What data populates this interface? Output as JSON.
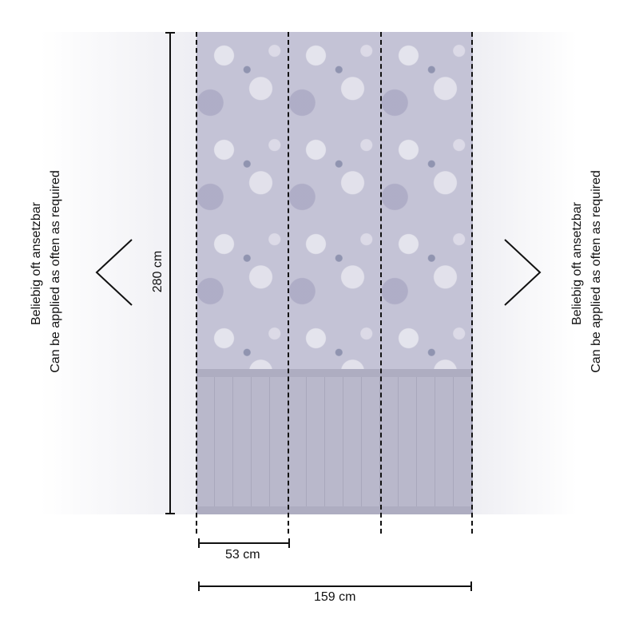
{
  "dimensions": {
    "height_label": "280 cm",
    "panel_width_label": "53 cm",
    "total_width_label": "159 cm"
  },
  "side_note": {
    "line1": "Beliebig oft ansetzbar",
    "line2": "Can be applied as often as required"
  },
  "colors": {
    "pattern": "#c4c3d6",
    "wainscot": "#b9b8cb",
    "lines": "#111111"
  }
}
